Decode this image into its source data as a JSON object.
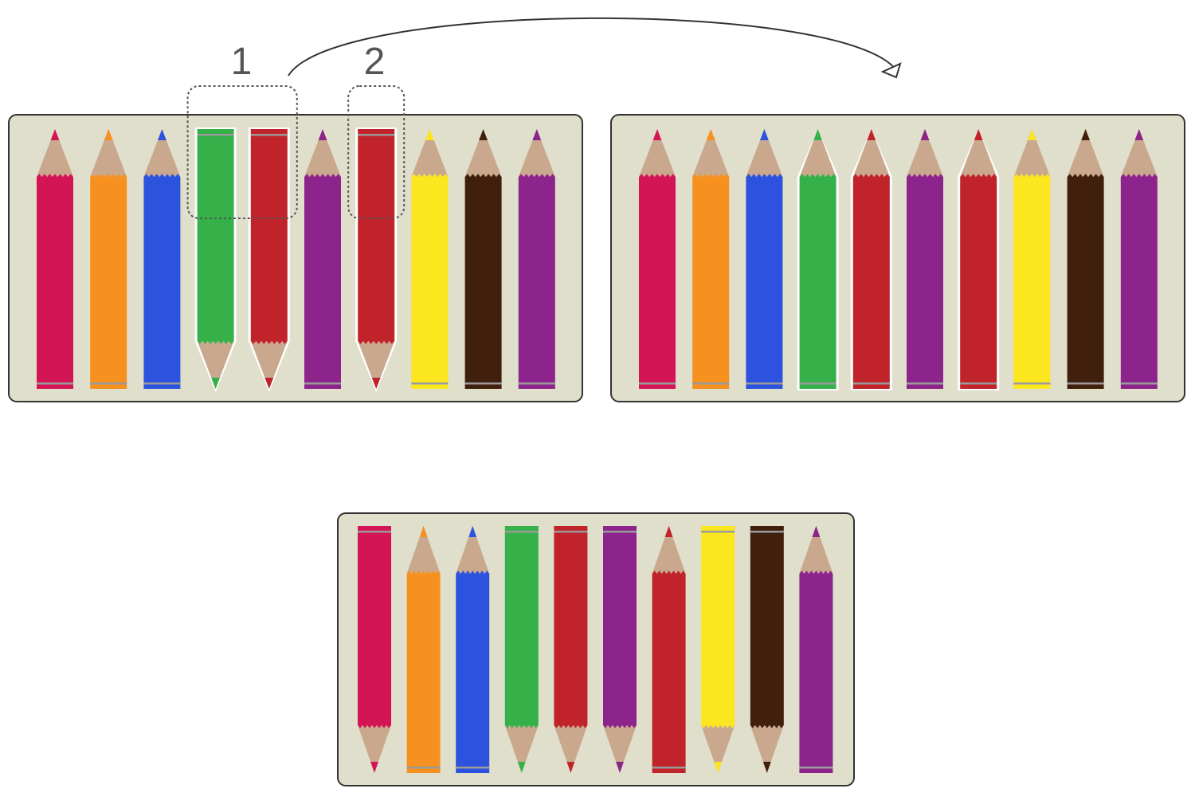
{
  "colors": {
    "box_fill": "#e0dfcc",
    "box_stroke": "#333333",
    "wood": "#c9a88e",
    "ferrule_band": "#9a9a9a",
    "selection_outline": "#555555",
    "arrow": "#333333",
    "highlight_outline": "#ffffff"
  },
  "labels": {
    "step1": "1",
    "step2": "2"
  },
  "arrow": {
    "from": "box-before",
    "to": "box-after",
    "direction": "right"
  },
  "pencil_boxes": [
    {
      "id": "before",
      "pencils": [
        {
          "color": "crimson",
          "fill": "#d41555",
          "tip": "up",
          "highlighted": false
        },
        {
          "color": "orange",
          "fill": "#f6901e",
          "tip": "up",
          "highlighted": false
        },
        {
          "color": "blue",
          "fill": "#2c52de",
          "tip": "up",
          "highlighted": false
        },
        {
          "color": "green",
          "fill": "#36b14a",
          "tip": "down",
          "highlighted": true
        },
        {
          "color": "red",
          "fill": "#c1232a",
          "tip": "down",
          "highlighted": true
        },
        {
          "color": "purple",
          "fill": "#8d248c",
          "tip": "up",
          "highlighted": false
        },
        {
          "color": "red",
          "fill": "#c1232a",
          "tip": "down",
          "highlighted": true
        },
        {
          "color": "yellow",
          "fill": "#fce61f",
          "tip": "up",
          "highlighted": false
        },
        {
          "color": "brown",
          "fill": "#40200c",
          "tip": "up",
          "highlighted": false
        },
        {
          "color": "purple",
          "fill": "#8d248c",
          "tip": "up",
          "highlighted": false
        }
      ],
      "selections": [
        {
          "label": "1",
          "from_index": 3,
          "to_index": 4
        },
        {
          "label": "2",
          "from_index": 6,
          "to_index": 6
        }
      ]
    },
    {
      "id": "after",
      "pencils": [
        {
          "color": "crimson",
          "fill": "#d41555",
          "tip": "up",
          "highlighted": false
        },
        {
          "color": "orange",
          "fill": "#f6901e",
          "tip": "up",
          "highlighted": false
        },
        {
          "color": "blue",
          "fill": "#2c52de",
          "tip": "up",
          "highlighted": false
        },
        {
          "color": "green",
          "fill": "#36b14a",
          "tip": "up",
          "highlighted": true
        },
        {
          "color": "red",
          "fill": "#c1232a",
          "tip": "up",
          "highlighted": true
        },
        {
          "color": "purple",
          "fill": "#8d248c",
          "tip": "up",
          "highlighted": false
        },
        {
          "color": "red",
          "fill": "#c1232a",
          "tip": "up",
          "highlighted": true
        },
        {
          "color": "yellow",
          "fill": "#fce61f",
          "tip": "up",
          "highlighted": false
        },
        {
          "color": "brown",
          "fill": "#40200c",
          "tip": "up",
          "highlighted": false
        },
        {
          "color": "purple",
          "fill": "#8d248c",
          "tip": "up",
          "highlighted": false
        }
      ],
      "selections": []
    },
    {
      "id": "puzzle",
      "pencils": [
        {
          "color": "crimson",
          "fill": "#d41555",
          "tip": "down",
          "highlighted": false
        },
        {
          "color": "orange",
          "fill": "#f6901e",
          "tip": "up",
          "highlighted": false
        },
        {
          "color": "blue",
          "fill": "#2c52de",
          "tip": "up",
          "highlighted": false
        },
        {
          "color": "green",
          "fill": "#36b14a",
          "tip": "down",
          "highlighted": false
        },
        {
          "color": "red",
          "fill": "#c1232a",
          "tip": "down",
          "highlighted": false
        },
        {
          "color": "purple",
          "fill": "#8d248c",
          "tip": "down",
          "highlighted": false
        },
        {
          "color": "red",
          "fill": "#c1232a",
          "tip": "up",
          "highlighted": false
        },
        {
          "color": "yellow",
          "fill": "#fce61f",
          "tip": "down",
          "highlighted": false
        },
        {
          "color": "brown",
          "fill": "#40200c",
          "tip": "down",
          "highlighted": false
        },
        {
          "color": "purple",
          "fill": "#8d248c",
          "tip": "up",
          "highlighted": false
        }
      ],
      "selections": []
    }
  ]
}
